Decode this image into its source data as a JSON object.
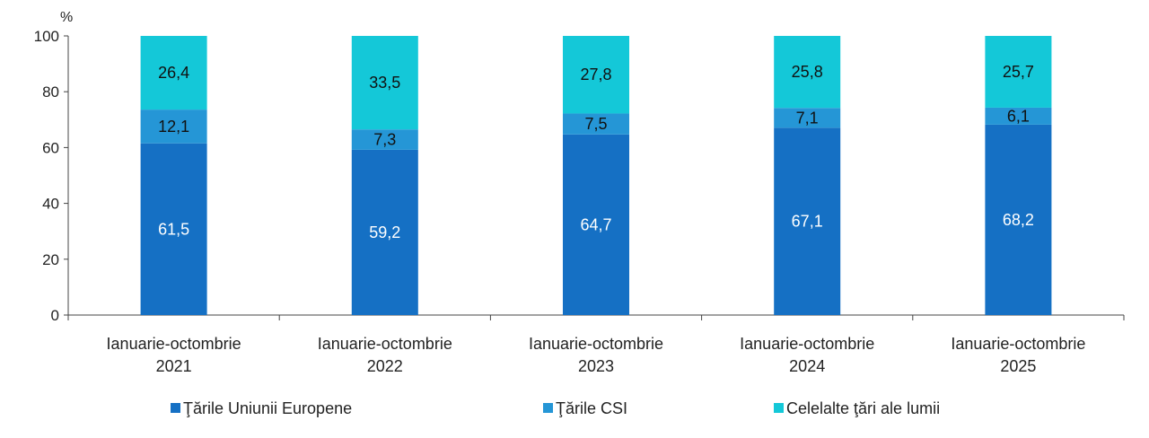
{
  "chart_data": {
    "type": "bar",
    "stacked": true,
    "unit_label": "%",
    "ylim": [
      0,
      100
    ],
    "yticks": [
      0,
      20,
      40,
      60,
      80,
      100
    ],
    "grid": false,
    "legend_position": "bottom",
    "categories": [
      [
        "Ianuarie-octombrie",
        "2021"
      ],
      [
        "Ianuarie-octombrie",
        "2022"
      ],
      [
        "Ianuarie-octombrie",
        "2023"
      ],
      [
        "Ianuarie-octombrie",
        "2024"
      ],
      [
        "Ianuarie-octombrie",
        "2025"
      ]
    ],
    "series": [
      {
        "name": "Ţările Uniunii Europene",
        "color": "#1570C4",
        "label_color": "#ffffff",
        "values": [
          61.5,
          59.2,
          64.7,
          67.1,
          68.2
        ]
      },
      {
        "name": "Ţările CSI",
        "color": "#2596D6",
        "label_color": "#111111",
        "values": [
          12.1,
          7.3,
          7.5,
          7.1,
          6.1
        ]
      },
      {
        "name": "Celelalte ţări ale lumii",
        "color": "#14C8D8",
        "label_color": "#111111",
        "values": [
          26.4,
          33.5,
          27.8,
          25.8,
          25.7
        ]
      }
    ],
    "value_labels": [
      [
        "61,5",
        "59,2",
        "64,7",
        "67,1",
        "68,2"
      ],
      [
        "12,1",
        "7,3",
        "7,5",
        "7,1",
        "6,1"
      ],
      [
        "26,4",
        "33,5",
        "27,8",
        "25,8",
        "25,7"
      ]
    ]
  }
}
